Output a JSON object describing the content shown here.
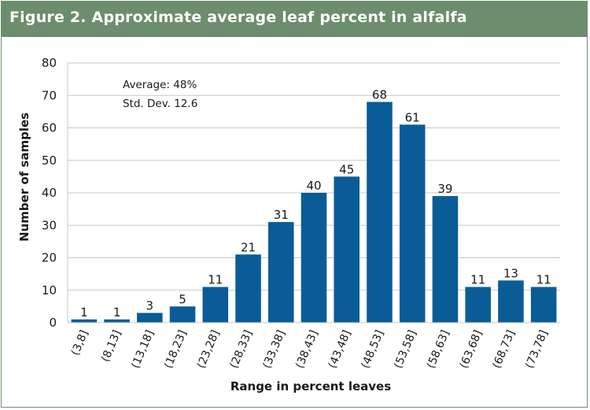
{
  "figure": {
    "title": "Figure 2. Approximate average leaf percent in alfalfa"
  },
  "colors": {
    "header": "#6c8d6e",
    "bar": "#0a5c96",
    "grid": "#c8c8c8",
    "text": "#1a1a1a"
  },
  "chart_data": {
    "type": "bar",
    "title": "Figure 2. Approximate average leaf percent in alfalfa",
    "xlabel": "Range in percent leaves",
    "ylabel": "Number of samples",
    "categories": [
      "(3,8]",
      "(8,13]",
      "(13,18]",
      "(18,23]",
      "(23,28]",
      "(28,33]",
      "(33,38]",
      "(38,43]",
      "(43,48]",
      "(48,53]",
      "(53,58]",
      "(58,63]",
      "(63,68]",
      "(68,73]",
      "(73,78]"
    ],
    "values": [
      1,
      1,
      3,
      5,
      11,
      21,
      31,
      40,
      45,
      68,
      61,
      39,
      11,
      13,
      11
    ],
    "data_labels": [
      "1",
      "1",
      "3",
      "5",
      "11",
      "21",
      "31",
      "40",
      "45",
      "68",
      "61",
      "39",
      "11",
      "13",
      "11"
    ],
    "ylim": [
      0,
      80
    ],
    "yticks": [
      0,
      10,
      20,
      30,
      40,
      50,
      60,
      70,
      80
    ],
    "ytick_labels": [
      "0",
      "10",
      "20",
      "30",
      "40",
      "50",
      "60",
      "70",
      "80"
    ],
    "grid": true,
    "legend": "none",
    "annotations": [
      "Average: 48%",
      "Std. Dev. 12.6"
    ]
  }
}
